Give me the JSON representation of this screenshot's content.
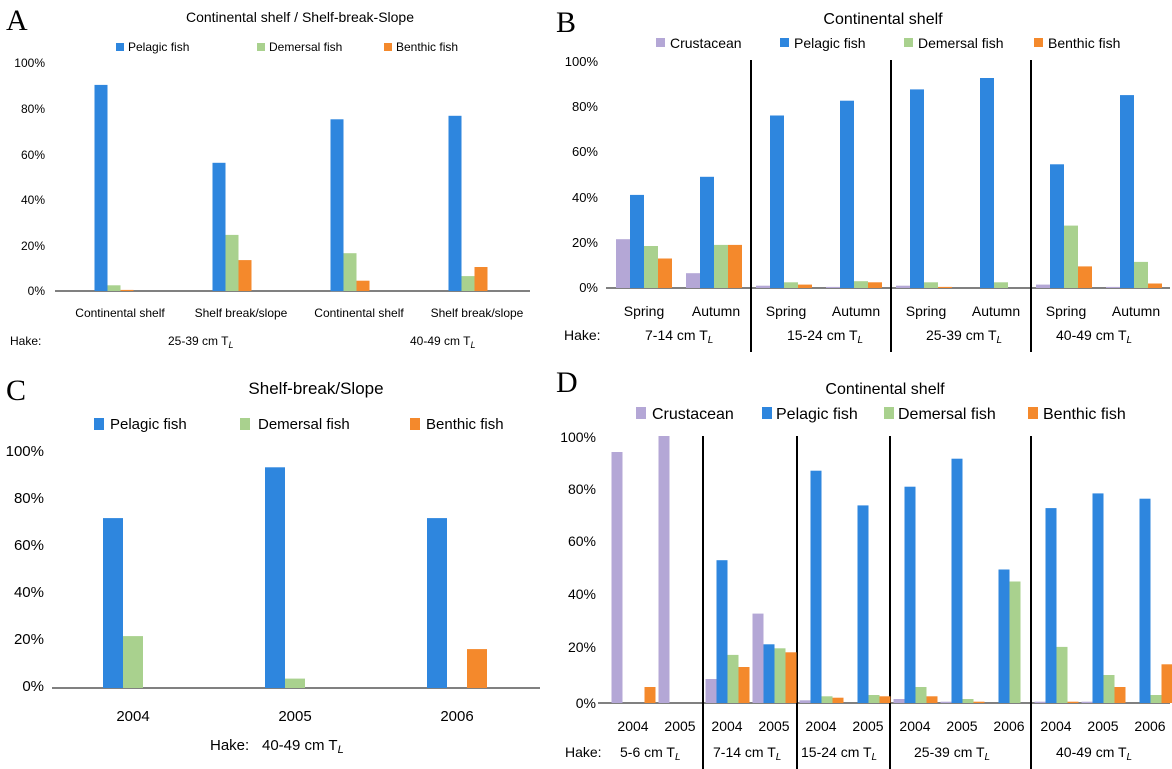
{
  "colors": {
    "crustacean": "#b4a7d6",
    "pelagic": "#2e86de",
    "demersal": "#a9d18e",
    "benthic": "#f4892c",
    "axis": "#000000",
    "divider": "#000000"
  },
  "panels": {
    "A": {
      "letter": "A",
      "title": "Continental shelf / Shelf-break-Slope",
      "legend": [
        "Pelagic fish",
        "Demersal fish",
        "Benthic fish"
      ],
      "yticks": [
        "0%",
        "20%",
        "40%",
        "60%",
        "80%",
        "100%"
      ],
      "categories": [
        "Continental shelf",
        "Shelf break/slope",
        "Continental shelf",
        "Shelf break/slope"
      ],
      "hake_label": "Hake:",
      "groups": [
        {
          "label": "25-39 cm T",
          "sub": "L"
        },
        {
          "label": "40-49 cm T",
          "sub": "L"
        }
      ]
    },
    "B": {
      "letter": "B",
      "title": "Continental shelf",
      "legend": [
        "Crustacean",
        "Pelagic fish",
        "Demersal fish",
        "Benthic fish"
      ],
      "yticks": [
        "0%",
        "20%",
        "40%",
        "60%",
        "80%",
        "100%"
      ],
      "categories": [
        "Spring",
        "Autumn",
        "Spring",
        "Autumn",
        "Spring",
        "Autumn",
        "Spring",
        "Autumn"
      ],
      "hake_label": "Hake:",
      "groups": [
        {
          "label": "7-14 cm T",
          "sub": "L"
        },
        {
          "label": "15-24 cm T",
          "sub": "L"
        },
        {
          "label": "25-39 cm T",
          "sub": "L"
        },
        {
          "label": "40-49 cm T",
          "sub": "L"
        }
      ]
    },
    "C": {
      "letter": "C",
      "title": "Shelf-break/Slope",
      "legend": [
        "Pelagic fish",
        "Demersal fish",
        "Benthic fish"
      ],
      "yticks": [
        "0%",
        "20%",
        "40%",
        "60%",
        "80%",
        "100%"
      ],
      "categories": [
        "2004",
        "2005",
        "2006"
      ],
      "hake_label": "Hake:",
      "groups": [
        {
          "label": "40-49 cm T",
          "sub": "L"
        }
      ]
    },
    "D": {
      "letter": "D",
      "title": "Continental shelf",
      "legend": [
        "Crustacean",
        "Pelagic fish",
        "Demersal fish",
        "Benthic fish"
      ],
      "yticks": [
        "0%",
        "20%",
        "40%",
        "60%",
        "80%",
        "100%"
      ],
      "categories": [
        "2004",
        "2005",
        "2004",
        "2005",
        "2004",
        "2005",
        "2004",
        "2005",
        "2006",
        "2004",
        "2005",
        "2006"
      ],
      "hake_label": "Hake:",
      "groups": [
        {
          "label": "5-6 cm T",
          "sub": "L"
        },
        {
          "label": "7-14 cm T",
          "sub": "L"
        },
        {
          "label": "15-24 cm T",
          "sub": "L"
        },
        {
          "label": "25-39 cm T",
          "sub": "L"
        },
        {
          "label": "40-49 cm T",
          "sub": "L"
        }
      ]
    }
  },
  "chart_data": [
    {
      "panel": "A",
      "type": "bar",
      "title": "Continental shelf / Shelf-break-Slope",
      "categories": [
        "Continental shelf",
        "Shelf break/slope",
        "Continental shelf",
        "Shelf break/slope"
      ],
      "ylim": [
        0,
        100
      ],
      "series": [
        {
          "name": "Pelagic fish",
          "color": "#2e86de",
          "values": [
            90,
            56,
            75,
            76.5
          ]
        },
        {
          "name": "Demersal fish",
          "color": "#a9d18e",
          "values": [
            2.5,
            24.5,
            16.5,
            6.5
          ]
        },
        {
          "name": "Benthic fish",
          "color": "#f4892c",
          "values": [
            0.5,
            13.5,
            4.5,
            10.5
          ]
        }
      ]
    },
    {
      "panel": "B",
      "type": "bar",
      "title": "Continental shelf",
      "categories": [
        "Spring",
        "Autumn",
        "Spring",
        "Autumn",
        "Spring",
        "Autumn",
        "Spring",
        "Autumn"
      ],
      "ylim": [
        0,
        100
      ],
      "series": [
        {
          "name": "Crustacean",
          "color": "#b4a7d6",
          "values": [
            21.5,
            6.5,
            1,
            0.5,
            1,
            0,
            1.5,
            0.5
          ]
        },
        {
          "name": "Pelagic fish",
          "color": "#2e86de",
          "values": [
            41,
            49,
            76,
            82.5,
            87.5,
            92.5,
            54.5,
            85
          ]
        },
        {
          "name": "Demersal fish",
          "color": "#a9d18e",
          "values": [
            18.5,
            19,
            2.5,
            3,
            2.5,
            2.5,
            27.5,
            11.5
          ]
        },
        {
          "name": "Benthic fish",
          "color": "#f4892c",
          "values": [
            13,
            19,
            1.5,
            2.5,
            0.5,
            0,
            9.5,
            2
          ]
        }
      ]
    },
    {
      "panel": "C",
      "type": "bar",
      "title": "Shelf-break/Slope",
      "categories": [
        "2004",
        "2005",
        "2006"
      ],
      "ylim": [
        0,
        100
      ],
      "series": [
        {
          "name": "Pelagic fish",
          "color": "#2e86de",
          "values": [
            72,
            93.5,
            72
          ]
        },
        {
          "name": "Demersal fish",
          "color": "#a9d18e",
          "values": [
            22,
            4,
            0
          ]
        },
        {
          "name": "Benthic fish",
          "color": "#f4892c",
          "values": [
            0,
            0,
            16.5
          ]
        }
      ]
    },
    {
      "panel": "D",
      "type": "bar",
      "title": "Continental shelf",
      "categories": [
        "2004",
        "2005",
        "2004",
        "2005",
        "2004",
        "2005",
        "2004",
        "2005",
        "2006",
        "2004",
        "2005",
        "2006"
      ],
      "ylim": [
        0,
        100
      ],
      "series": [
        {
          "name": "Crustacean",
          "color": "#b4a7d6",
          "values": [
            94,
            100,
            9,
            33.5,
            1,
            0,
            1.5,
            0.5,
            0,
            0.5,
            0.5,
            0
          ]
        },
        {
          "name": "Pelagic fish",
          "color": "#2e86de",
          "values": [
            0,
            0,
            53.5,
            22,
            87,
            74,
            81,
            91.5,
            50,
            73,
            78.5,
            76.5
          ]
        },
        {
          "name": "Demersal fish",
          "color": "#a9d18e",
          "values": [
            0,
            0,
            18,
            20.5,
            2.5,
            3,
            6,
            1.5,
            45.5,
            21,
            10.5,
            3
          ]
        },
        {
          "name": "Benthic fish",
          "color": "#f4892c",
          "values": [
            6,
            0,
            13.5,
            19,
            2,
            2.5,
            2.5,
            0.5,
            0,
            0.5,
            6,
            14.5
          ]
        }
      ]
    }
  ]
}
